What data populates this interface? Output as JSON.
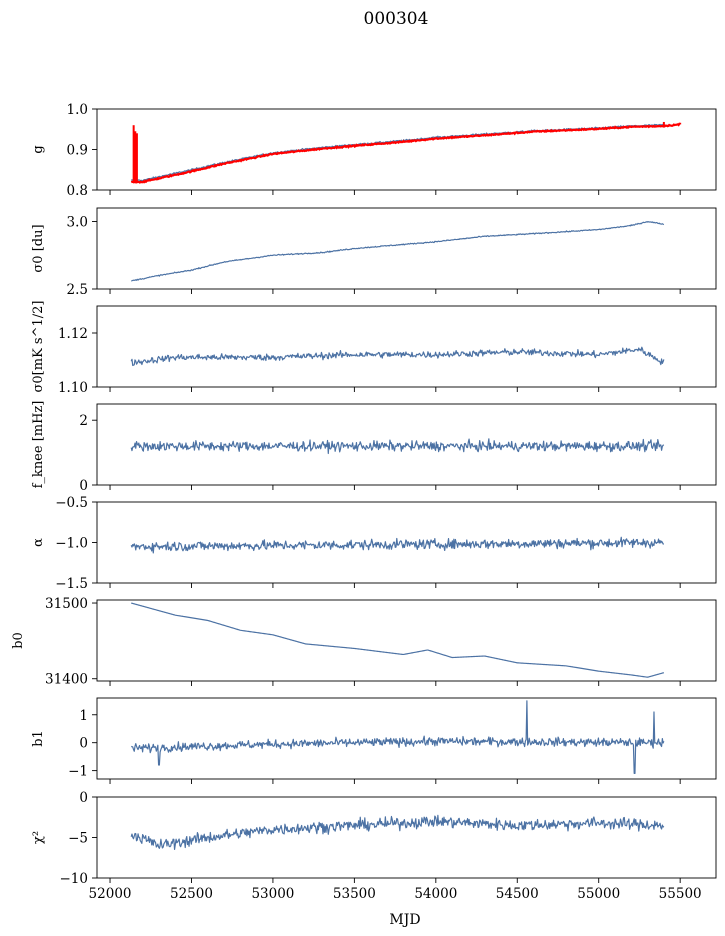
{
  "figure": {
    "title": "000304",
    "xlabel": "MJD"
  },
  "chart_data": {
    "type": "line",
    "shared_x_axis": {
      "label": "MJD",
      "range": [
        51920,
        55720
      ],
      "ticks": [
        52000,
        52500,
        53000,
        53500,
        54000,
        54500,
        55000,
        55500
      ],
      "data_span": [
        52130,
        55400
      ]
    },
    "grid": false,
    "line_color": "#4c72a4",
    "highlight_color": "#ff0000",
    "panels": [
      {
        "id": "g",
        "ylabel": "g",
        "ylim": [
          0.8,
          1.0
        ],
        "yticks": [
          0.8,
          0.9,
          1.0
        ],
        "ytick_labels": [
          "0.8",
          "0.9",
          "1.0"
        ],
        "trend": [
          [
            52130,
            0.824
          ],
          [
            52200,
            0.824
          ],
          [
            52500,
            0.85
          ],
          [
            52700,
            0.868
          ],
          [
            53000,
            0.892
          ],
          [
            53300,
            0.905
          ],
          [
            53500,
            0.912
          ],
          [
            53800,
            0.922
          ],
          [
            54000,
            0.93
          ],
          [
            54300,
            0.938
          ],
          [
            54600,
            0.946
          ],
          [
            55000,
            0.953
          ],
          [
            55200,
            0.958
          ],
          [
            55400,
            0.961
          ]
        ],
        "noise": 0.002,
        "overlay": {
          "color": "#ff0000",
          "trend": [
            [
              52130,
              0.82
            ],
            [
              52200,
              0.82
            ],
            [
              52500,
              0.846
            ],
            [
              52700,
              0.865
            ],
            [
              53000,
              0.889
            ],
            [
              53300,
              0.902
            ],
            [
              53500,
              0.909
            ],
            [
              53800,
              0.919
            ],
            [
              54000,
              0.927
            ],
            [
              54300,
              0.935
            ],
            [
              54600,
              0.944
            ],
            [
              55000,
              0.951
            ],
            [
              55200,
              0.956
            ],
            [
              55400,
              0.958
            ],
            [
              55500,
              0.962
            ]
          ],
          "spikes": [
            [
              52145,
              0.96
            ],
            [
              52155,
              0.945
            ],
            [
              52165,
              0.94
            ],
            [
              55400,
              0.968
            ],
            [
              55500,
              0.966
            ]
          ]
        }
      },
      {
        "id": "sigma0-du",
        "ylabel": "σ0 [du]",
        "ylim": [
          2.5,
          3.1
        ],
        "yticks": [
          2.5,
          3.0
        ],
        "ytick_labels": [
          "2.5",
          "3.0"
        ],
        "trend": [
          [
            52130,
            2.56
          ],
          [
            52300,
            2.6
          ],
          [
            52500,
            2.64
          ],
          [
            52700,
            2.7
          ],
          [
            53000,
            2.75
          ],
          [
            53300,
            2.77
          ],
          [
            53500,
            2.8
          ],
          [
            53800,
            2.83
          ],
          [
            54000,
            2.85
          ],
          [
            54300,
            2.89
          ],
          [
            54600,
            2.91
          ],
          [
            55000,
            2.94
          ],
          [
            55200,
            2.97
          ],
          [
            55300,
            3.0
          ],
          [
            55400,
            2.98
          ]
        ],
        "noise": 0.004
      },
      {
        "id": "sigma0-mk",
        "ylabel": "σ0[mK s^1/2]",
        "ylim": [
          1.1,
          1.13
        ],
        "yticks": [
          1.1,
          1.12
        ],
        "ytick_labels": [
          "1.10",
          "1.12"
        ],
        "trend": [
          [
            52130,
            1.109
          ],
          [
            52400,
            1.111
          ],
          [
            53000,
            1.111
          ],
          [
            53500,
            1.112
          ],
          [
            54000,
            1.112
          ],
          [
            54500,
            1.113
          ],
          [
            55000,
            1.112
          ],
          [
            55250,
            1.114
          ],
          [
            55400,
            1.109
          ]
        ],
        "noise": 0.0012
      },
      {
        "id": "fknee",
        "ylabel": "f_knee [mHz]",
        "ylim": [
          0,
          2.5
        ],
        "yticks": [
          0,
          2
        ],
        "ytick_labels": [
          "0",
          "2"
        ],
        "trend": [
          [
            52130,
            1.2
          ],
          [
            55400,
            1.2
          ]
        ],
        "noise": 0.15
      },
      {
        "id": "alpha",
        "ylabel": "α",
        "ylim": [
          -1.5,
          -0.5
        ],
        "yticks": [
          -1.5,
          -1.0,
          -0.5
        ],
        "ytick_labels": [
          "−1.5",
          "−1.0",
          "−0.5"
        ],
        "trend": [
          [
            52130,
            -1.05
          ],
          [
            55400,
            -1.0
          ]
        ],
        "noise": 0.06
      },
      {
        "id": "b0",
        "ylabel": "b0",
        "ylim": [
          31397,
          31504
        ],
        "yticks": [
          31400,
          31500
        ],
        "ytick_labels": [
          "31400",
          "31500"
        ],
        "trend": [
          [
            52130,
            31500
          ],
          [
            52400,
            31484
          ],
          [
            52600,
            31477
          ],
          [
            52800,
            31464
          ],
          [
            53000,
            31458
          ],
          [
            53200,
            31446
          ],
          [
            53500,
            31440
          ],
          [
            53800,
            31432
          ],
          [
            53950,
            31438
          ],
          [
            54100,
            31428
          ],
          [
            54300,
            31430
          ],
          [
            54500,
            31421
          ],
          [
            54800,
            31417
          ],
          [
            55000,
            31410
          ],
          [
            55200,
            31405
          ],
          [
            55300,
            31402
          ],
          [
            55400,
            31408
          ]
        ],
        "noise": 0
      },
      {
        "id": "b1",
        "ylabel": "b1",
        "ylim": [
          -1.3,
          1.6
        ],
        "yticks": [
          -1,
          0,
          1
        ],
        "ytick_labels": [
          "−1",
          "0",
          "1"
        ],
        "trend": [
          [
            52130,
            -0.2
          ],
          [
            53000,
            -0.05
          ],
          [
            54000,
            0.05
          ],
          [
            55400,
            0.0
          ]
        ],
        "noise": 0.15,
        "spikes": [
          [
            54560,
            1.5
          ],
          [
            55340,
            1.1
          ],
          [
            55220,
            -1.1
          ],
          [
            52300,
            -0.8
          ]
        ]
      },
      {
        "id": "chi2",
        "ylabel": "χ²",
        "ylim": [
          -10,
          0
        ],
        "yticks": [
          -10,
          -5,
          0
        ],
        "ytick_labels": [
          "−10",
          "−5",
          "0"
        ],
        "trend": [
          [
            52130,
            -4.5
          ],
          [
            52300,
            -6
          ],
          [
            52600,
            -5
          ],
          [
            53000,
            -4
          ],
          [
            53500,
            -3.5
          ],
          [
            54000,
            -3
          ],
          [
            54500,
            -3.5
          ],
          [
            55000,
            -3.2
          ],
          [
            55400,
            -3.5
          ]
        ],
        "noise": 0.7
      }
    ]
  }
}
